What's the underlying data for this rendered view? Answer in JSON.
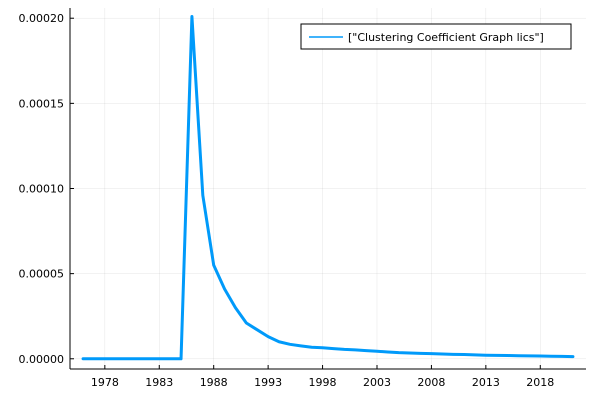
{
  "chart_data": {
    "type": "line",
    "title": "",
    "xlabel": "",
    "ylabel": "",
    "xlim": [
      1974.8,
      2022.2
    ],
    "ylim": [
      -6e-06,
      0.000206
    ],
    "x_ticks": [
      1978,
      1983,
      1988,
      1993,
      1998,
      2003,
      2008,
      2013,
      2018
    ],
    "y_ticks": [
      0.0,
      5e-05,
      0.0001,
      0.00015,
      0.0002
    ],
    "y_tick_labels": [
      "0.00000",
      "0.00005",
      "0.00010",
      "0.00015",
      "0.00020"
    ],
    "grid": true,
    "legend_position": "top-right",
    "series": [
      {
        "name": "[\"Clustering Coefficient Graph lics\"]",
        "color": "#009AFA",
        "x": [
          1976,
          1977,
          1978,
          1979,
          1980,
          1981,
          1982,
          1983,
          1984,
          1985,
          1986,
          1987,
          1988,
          1989,
          1990,
          1991,
          1992,
          1993,
          1994,
          1995,
          1996,
          1997,
          1998,
          1999,
          2000,
          2001,
          2002,
          2003,
          2004,
          2005,
          2006,
          2007,
          2008,
          2009,
          2010,
          2011,
          2012,
          2013,
          2014,
          2015,
          2016,
          2017,
          2018,
          2019,
          2020,
          2021
        ],
        "y": [
          0.0,
          0.0,
          0.0,
          0.0,
          0.0,
          0.0,
          0.0,
          0.0,
          0.0,
          0.0,
          0.000201,
          9.6e-05,
          5.5e-05,
          4.1e-05,
          3e-05,
          2.1e-05,
          1.7e-05,
          1.3e-05,
          1e-05,
          8.5e-06,
          7.6e-06,
          6.8e-06,
          6.5e-06,
          6e-06,
          5.5e-06,
          5.2e-06,
          4.8e-06,
          4.4e-06,
          4e-06,
          3.6e-06,
          3.4e-06,
          3.2e-06,
          3e-06,
          2.8e-06,
          2.6e-06,
          2.5e-06,
          2.3e-06,
          2.1e-06,
          2e-06,
          1.9e-06,
          1.8e-06,
          1.7e-06,
          1.6e-06,
          1.5e-06,
          1.4e-06,
          1.3e-06
        ]
      }
    ]
  }
}
